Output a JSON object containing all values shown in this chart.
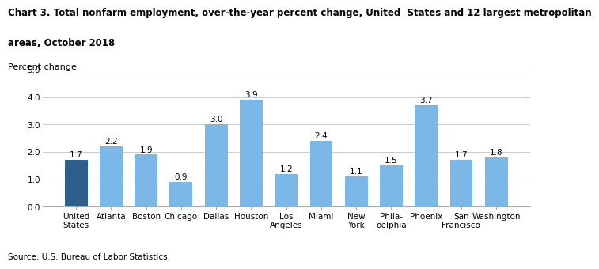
{
  "title_line1": "Chart 3. Total nonfarm employment, over-the-year percent change, United  States and 12 largest metropolitan",
  "title_line2": "areas, October 2018",
  "ylabel": "Percent change",
  "source": "Source: U.S. Bureau of Labor Statistics.",
  "categories": [
    "United\nStates",
    "Atlanta",
    "Boston",
    "Chicago",
    "Dallas",
    "Houston",
    "Los\nAngeles",
    "Miami",
    "New\nYork",
    "Phila-\ndelphia",
    "Phoenix",
    "San\nFrancisco",
    "Washington"
  ],
  "values": [
    1.7,
    2.2,
    1.9,
    0.9,
    3.0,
    3.9,
    1.2,
    2.4,
    1.1,
    1.5,
    3.7,
    1.7,
    1.8
  ],
  "bar_colors": [
    "#2E5F8A",
    "#7BB8E8",
    "#7BB8E8",
    "#7BB8E8",
    "#7BB8E8",
    "#7BB8E8",
    "#7BB8E8",
    "#7BB8E8",
    "#7BB8E8",
    "#7BB8E8",
    "#7BB8E8",
    "#7BB8E8",
    "#7BB8E8"
  ],
  "ylim": [
    0,
    5.0
  ],
  "yticks": [
    0.0,
    1.0,
    2.0,
    3.0,
    4.0,
    5.0
  ],
  "ytick_labels": [
    "0.0",
    "1.0",
    "2.0",
    "3.0",
    "4.0",
    "5.0"
  ],
  "title_fontsize": 8.5,
  "ylabel_fontsize": 8,
  "tick_fontsize": 7.5,
  "label_fontsize": 7.5,
  "source_fontsize": 7.5,
  "background_color": "#ffffff",
  "grid_color": "#cccccc"
}
